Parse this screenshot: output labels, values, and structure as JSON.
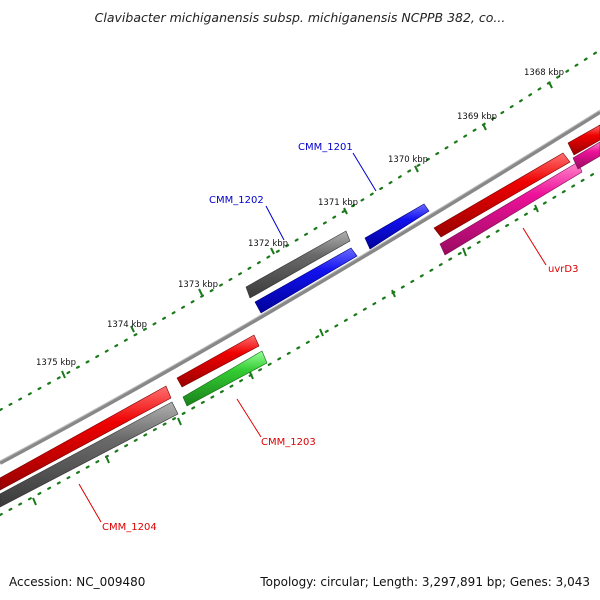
{
  "title": "Clavibacter michiganensis subsp. michiganensis NCPPB 382, co...",
  "footer": {
    "accession": "Accession: NC_009480",
    "summary": "Topology: circular; Length: 3,297,891 bp; Genes: 3,043"
  },
  "scale_labels": [
    "1368 kbp",
    "1369 kbp",
    "1370 kbp",
    "1371 kbp",
    "1372 kbp",
    "1373 kbp",
    "1374 kbp",
    "1375 kbp"
  ],
  "gene_labels": {
    "cmm_1201": "CMM_1201",
    "cmm_1202": "CMM_1202",
    "cmm_1203": "CMM_1203",
    "cmm_1204": "CMM_1204",
    "uvrd3": "uvrD3"
  },
  "colors": {
    "forward_label": "#0000cc",
    "reverse_label": "#dd0000",
    "tick": "#1a7a1a",
    "backbone": "#808080",
    "red": "#ee0000",
    "blue": "#1111ee",
    "gray": "#6a6a6a",
    "green": "#33cc33",
    "pink": "#ee1199"
  }
}
